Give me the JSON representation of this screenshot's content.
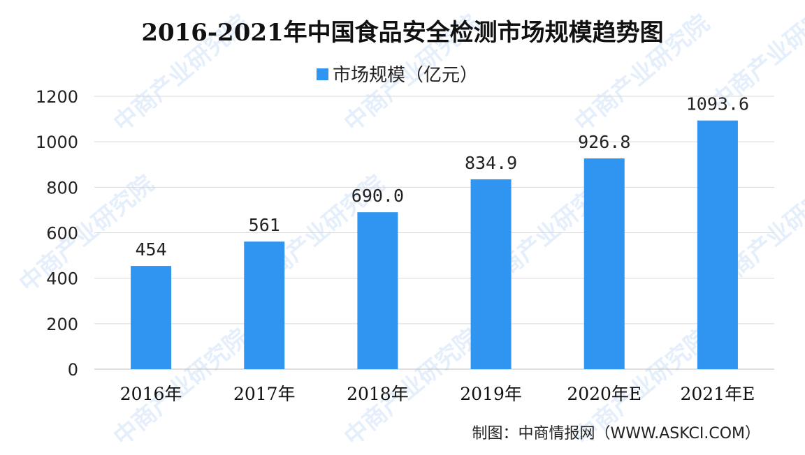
{
  "chart_data": {
    "type": "bar",
    "title": "2016-2021年中国食品安全检测市场规模趋势图",
    "categories": [
      "2016年",
      "2017年",
      "2018年",
      "2019年",
      "2020年E",
      "2021年E"
    ],
    "series": [
      {
        "name": "市场规模（亿元）",
        "values": [
          454,
          561,
          690.0,
          834.9,
          926.8,
          1093.6
        ]
      }
    ],
    "data_labels": [
      "454",
      "561",
      "690.0",
      "834.9",
      "926.8",
      "1093.6"
    ],
    "yticks": [
      "0",
      "200",
      "400",
      "600",
      "800",
      "1000",
      "1200"
    ],
    "ylim": [
      0,
      1200
    ],
    "grid": true,
    "legend_position": "top-center",
    "bar_color": "#2f95f0",
    "source": "制图：中商情报网（WWW.ASKCI.COM）",
    "watermark": "中商产业研究院"
  }
}
